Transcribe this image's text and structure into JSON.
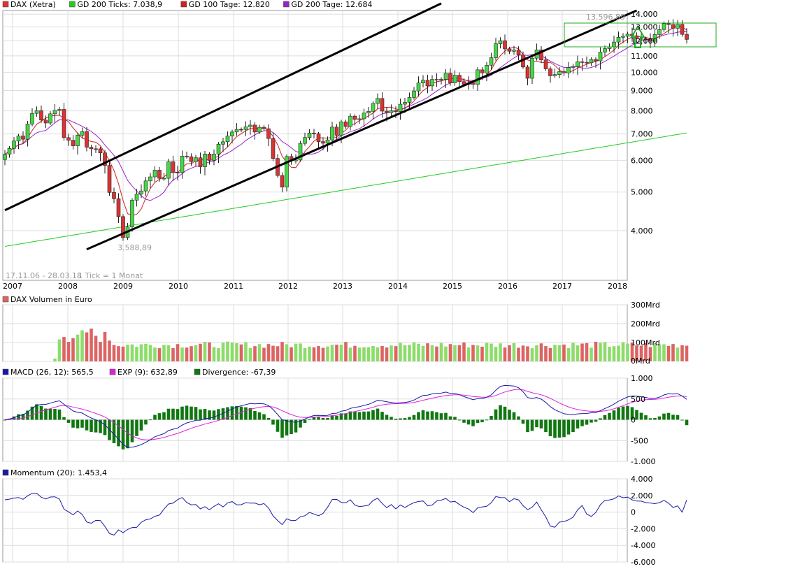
{
  "colors": {
    "candle_up": "#44d844",
    "candle_down": "#dc3232",
    "gd200_ticks": "#22cc22",
    "gd100": "#cc2222",
    "gd200": "#9922cc",
    "macd": "#1a1aa8",
    "exp": "#dd22dd",
    "divergence": "#117711",
    "momentum": "#1a1aa8",
    "volume_up": "#8ddc6a",
    "volume_down": "#dc6464",
    "grid": "#dddddd",
    "trend": "#000000"
  },
  "legend_price": [
    {
      "label": "DAX (Xetra)",
      "color": "#dc3232"
    },
    {
      "label": "GD 200 Ticks: 7.038,9",
      "color": "#22cc22"
    },
    {
      "label": "GD 100 Tage: 12.820",
      "color": "#cc2222"
    },
    {
      "label": "GD 200 Tage: 12.684",
      "color": "#9922cc"
    }
  ],
  "legend_volume": [
    {
      "label": "DAX Volumen in Euro",
      "color": "#dc6464"
    }
  ],
  "legend_macd": [
    {
      "label": "MACD (26, 12): 565,5",
      "color": "#1a1aa8"
    },
    {
      "label": "EXP (9): 632,89",
      "color": "#dd22dd"
    },
    {
      "label": "Divergence: -67,39",
      "color": "#117711"
    }
  ],
  "legend_momentum": [
    {
      "label": "Momentum (20): 1.453,4",
      "color": "#1a1aa8"
    }
  ],
  "annotations": {
    "period": "17.11.06 - 28.03.18",
    "tick_info": "1 Tick = 1 Monat",
    "high_label": "13.596,89",
    "low_label": "3.588,89"
  },
  "chart_data": [
    {
      "type": "candlestick",
      "scale": "log",
      "x_labels": [
        "2007",
        "2008",
        "2009",
        "2010",
        "2011",
        "2012",
        "2013",
        "2014",
        "2015",
        "2016",
        "2017",
        "2018"
      ],
      "y_ticks": [
        {
          "value": 4000,
          "label": "4.000"
        },
        {
          "value": 5000,
          "label": "5.000"
        },
        {
          "value": 6000,
          "label": "6.000"
        },
        {
          "value": 7000,
          "label": "7.000"
        },
        {
          "value": 8000,
          "label": "8.000"
        },
        {
          "value": 9000,
          "label": "9.000"
        },
        {
          "value": 10000,
          "label": "10.000"
        },
        {
          "value": 11000,
          "label": "11.000"
        },
        {
          "value": 12000,
          "label": "12.000"
        },
        {
          "value": 13000,
          "label": "13.000"
        },
        {
          "value": 14000,
          "label": "14.000"
        }
      ],
      "ylim": [
        3000,
        14300
      ],
      "closes": [
        6222,
        6438,
        6715,
        6917,
        6789,
        7409,
        7884,
        8007,
        7584,
        7456,
        7862,
        8017,
        8067,
        6851,
        6748,
        6535,
        6949,
        7097,
        6480,
        6422,
        6421,
        6273,
        5831,
        4988,
        4810,
        4338,
        3843,
        4085,
        4770,
        4940,
        5032,
        5333,
        5459,
        5675,
        5415,
        5415,
        5958,
        5608,
        5598,
        6154,
        6135,
        5964,
        6097,
        5789,
        6230,
        6006,
        6229,
        6596,
        6688,
        6914,
        7078,
        7187,
        7184,
        7294,
        7367,
        7077,
        7273,
        7214,
        6816,
        6073,
        5502,
        5145,
        6142,
        5989,
        6020,
        6627,
        6856,
        7036,
        7008,
        6695,
        6633,
        6762,
        7282,
        6947,
        7506,
        7306,
        7759,
        7612,
        7641,
        7897,
        7977,
        8349,
        8594,
        7986,
        7914,
        8011,
        7968,
        8314,
        8403,
        8644,
        8975,
        9400,
        9552,
        9241,
        9596,
        9556,
        9604,
        9944,
        9405,
        9833,
        9474,
        9326,
        9406,
        9327,
        10144,
        9962,
        10417,
        10883,
        11795,
        12004,
        11450,
        11296,
        11374,
        11057,
        10311,
        9659,
        10850,
        11382,
        10743,
        10201,
        9797,
        9870,
        10039,
        9965,
        10281,
        10337,
        10627,
        10593,
        10566,
        10771,
        10683,
        11242,
        11470,
        11592,
        11913,
        12248,
        12317,
        12467,
        12354,
        12156,
        12119,
        12115,
        11970,
        12440,
        12807,
        13255,
        13181,
        12902,
        13200,
        12455,
        12097
      ],
      "gd200_ticks": {
        "first": 3650,
        "last": 7039
      },
      "gd100_tage": 12820,
      "gd200_tage": 12684,
      "trend_upper": [
        [
          0,
          4500
        ],
        [
          96,
          14900
        ]
      ],
      "trend_lower": [
        [
          18,
          3588.89
        ],
        [
          139,
          14300
        ]
      ],
      "high": 13596.89,
      "low": 3588.89
    },
    {
      "type": "bar",
      "title": "DAX Volumen in Euro",
      "y_ticks": [
        {
          "value": 0,
          "label": "0Mrd"
        },
        {
          "value": 100,
          "label": "100Mrd"
        },
        {
          "value": 200,
          "label": "200Mrd"
        },
        {
          "value": 300,
          "label": "300Mrd"
        }
      ],
      "ylim": [
        0,
        300
      ]
    },
    {
      "type": "line",
      "title": "MACD (26, 12)",
      "y_ticks": [
        {
          "value": 1000,
          "label": "1.000"
        },
        {
          "value": 500,
          "label": "500"
        },
        {
          "value": 0,
          "label": "0"
        },
        {
          "value": -500,
          "label": "-500"
        },
        {
          "value": -1000,
          "label": "-1.000"
        }
      ],
      "ylim": [
        -1000,
        1000
      ],
      "macd_last": 565.5,
      "exp_last": 632.89,
      "divergence_last": -67.39
    },
    {
      "type": "line",
      "title": "Momentum (20)",
      "y_ticks": [
        {
          "value": 4000,
          "label": "4.000"
        },
        {
          "value": 2000,
          "label": "2.000"
        },
        {
          "value": 0,
          "label": "0"
        },
        {
          "value": -2000,
          "label": "-2.000"
        },
        {
          "value": -4000,
          "label": "-4.000"
        },
        {
          "value": -6000,
          "label": "-6.000"
        }
      ],
      "ylim": [
        -6000,
        4000
      ],
      "momentum_last": 1453.4
    }
  ]
}
